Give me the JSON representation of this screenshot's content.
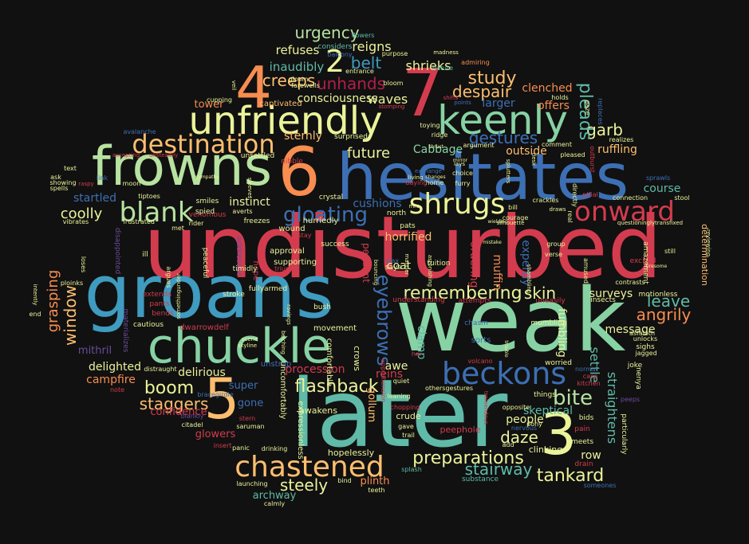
{
  "background": "#111111",
  "palette": {
    "red": "#d33c4e",
    "blue": "#3d6fb4",
    "teal": "#5fbaa7",
    "mint": "#87d2a3",
    "green": "#b7e2a0",
    "yellow": "#ebf39a",
    "orange": "#f78d50",
    "peach": "#fdbe6f",
    "crimson": "#b31e4a",
    "purple": "#6a4c9c",
    "cyan": "#3f9bbf"
  },
  "words": [
    {
      "text": "undisturbed",
      "color": "red"
    },
    {
      "text": "weak",
      "color": "mint"
    },
    {
      "text": "later",
      "color": "teal"
    },
    {
      "text": "groans",
      "color": "cyan"
    },
    {
      "text": "hesitates",
      "color": "blue"
    },
    {
      "text": "frowns",
      "color": "green"
    },
    {
      "text": "chuckle",
      "color": "mint"
    },
    {
      "text": "unfriendly",
      "color": "yellow"
    },
    {
      "text": "keenly",
      "color": "mint"
    },
    {
      "text": "7",
      "color": "red"
    },
    {
      "text": "6",
      "color": "orange"
    },
    {
      "text": "5",
      "color": "peach"
    },
    {
      "text": "4",
      "color": "orange"
    },
    {
      "text": "3",
      "color": "yellow"
    },
    {
      "text": "2",
      "color": "yellow"
    },
    {
      "text": "beckons",
      "color": "blue"
    },
    {
      "text": "destination",
      "color": "peach"
    },
    {
      "text": "chastened",
      "color": "peach"
    },
    {
      "text": "shrugs",
      "color": "yellow"
    },
    {
      "text": "onward",
      "color": "red"
    },
    {
      "text": "blank",
      "color": "green"
    },
    {
      "text": "gloating",
      "color": "blue"
    },
    {
      "text": "flashback",
      "color": "yellow"
    },
    {
      "text": "remembering",
      "color": "yellow"
    },
    {
      "text": "boom",
      "color": "yellow"
    },
    {
      "text": "bite",
      "color": "green"
    },
    {
      "text": "preparations",
      "color": "yellow"
    },
    {
      "text": "tankard",
      "color": "yellow"
    },
    {
      "text": "stairway",
      "color": "teal"
    },
    {
      "text": "staggers",
      "color": "peach"
    },
    {
      "text": "eyebrows",
      "color": "blue"
    },
    {
      "text": "study",
      "color": "peach"
    },
    {
      "text": "despair",
      "color": "peach"
    },
    {
      "text": "garb",
      "color": "yellow"
    },
    {
      "text": "gestures",
      "color": "blue"
    },
    {
      "text": "creeps",
      "color": "peach"
    },
    {
      "text": "urgency",
      "color": "green"
    },
    {
      "text": "unhands",
      "color": "crimson"
    },
    {
      "text": "belt",
      "color": "cyan"
    },
    {
      "text": "leave",
      "color": "teal"
    },
    {
      "text": "angrily",
      "color": "orange"
    },
    {
      "text": "daze",
      "color": "yellow"
    },
    {
      "text": "skin",
      "color": "yellow"
    },
    {
      "text": "steely",
      "color": "yellow"
    },
    {
      "text": "pleads",
      "color": "teal"
    },
    {
      "text": "future",
      "color": "yellow"
    },
    {
      "text": "coolly",
      "color": "yellow"
    },
    {
      "text": "window",
      "color": "peach"
    },
    {
      "text": "grasping",
      "color": "orange"
    },
    {
      "text": "shrieks",
      "color": "yellow"
    },
    {
      "text": "waves",
      "color": "yellow"
    },
    {
      "text": "reigns",
      "color": "yellow"
    },
    {
      "text": "refuses",
      "color": "yellow"
    },
    {
      "text": "inaudibly",
      "color": "teal"
    },
    {
      "text": "consciousness",
      "color": "yellow"
    },
    {
      "text": "tower",
      "color": "orange"
    },
    {
      "text": "larger",
      "color": "blue"
    },
    {
      "text": "offers",
      "color": "orange"
    },
    {
      "text": "clenched",
      "color": "orange"
    },
    {
      "text": "ruffling",
      "color": "peach"
    },
    {
      "text": "outside",
      "color": "peach"
    },
    {
      "text": "sternly",
      "color": "peach"
    },
    {
      "text": "Cabbage",
      "color": "mint"
    },
    {
      "text": "startled",
      "color": "blue"
    },
    {
      "text": "instinct",
      "color": "yellow"
    },
    {
      "text": "cushions",
      "color": "blue"
    },
    {
      "text": "horrified",
      "color": "peach"
    },
    {
      "text": "course",
      "color": "teal"
    },
    {
      "text": "surveys",
      "color": "yellow"
    },
    {
      "text": "message",
      "color": "yellow"
    },
    {
      "text": "delighted",
      "color": "yellow"
    },
    {
      "text": "delirious",
      "color": "yellow"
    },
    {
      "text": "campfire",
      "color": "orange"
    },
    {
      "text": "procession",
      "color": "red"
    },
    {
      "text": "awe",
      "color": "yellow"
    },
    {
      "text": "reins",
      "color": "red"
    },
    {
      "text": "clamp",
      "color": "teal"
    },
    {
      "text": "coat",
      "color": "yellow"
    },
    {
      "text": "muffin",
      "color": "orange"
    },
    {
      "text": "expertly",
      "color": "blue"
    },
    {
      "text": "fumbling",
      "color": "yellow"
    },
    {
      "text": "settle",
      "color": "teal"
    },
    {
      "text": "straightens",
      "color": "teal"
    },
    {
      "text": "row",
      "color": "yellow"
    },
    {
      "text": "people",
      "color": "yellow"
    },
    {
      "text": "skeptical",
      "color": "teal"
    },
    {
      "text": "confidence",
      "color": "red"
    },
    {
      "text": "glowers",
      "color": "red"
    },
    {
      "text": "gone",
      "color": "blue"
    },
    {
      "text": "super",
      "color": "blue"
    },
    {
      "text": "mithril",
      "color": "purple"
    },
    {
      "text": "archway",
      "color": "teal"
    },
    {
      "text": "plinth",
      "color": "orange"
    },
    {
      "text": "gollum",
      "color": "peach"
    },
    {
      "text": "ordering",
      "color": "red"
    },
    {
      "text": "pendant",
      "color": "red"
    },
    {
      "text": "crude",
      "color": "yellow"
    },
    {
      "text": "peephole",
      "color": "red"
    },
    {
      "text": "clinking",
      "color": "yellow"
    },
    {
      "text": "hopelessly",
      "color": "yellow"
    },
    {
      "text": "awakens",
      "color": "yellow"
    },
    {
      "text": "crows",
      "color": "yellow"
    },
    {
      "text": "unstrap",
      "color": "blue"
    },
    {
      "text": "dwarrowdelf",
      "color": "red"
    },
    {
      "text": "movement",
      "color": "yellow"
    },
    {
      "text": "comfortable",
      "color": "yellow"
    },
    {
      "text": "uncomfortably",
      "color": "yellow"
    },
    {
      "text": "expressionless",
      "color": "yellow"
    },
    {
      "text": "supporting",
      "color": "yellow"
    },
    {
      "text": "approval",
      "color": "yellow"
    },
    {
      "text": "addresses",
      "color": "purple"
    },
    {
      "text": "hope",
      "color": "red"
    },
    {
      "text": "wound",
      "color": "yellow"
    },
    {
      "text": "hurriedly",
      "color": "yellow"
    },
    {
      "text": "fullyarmed",
      "color": "yellow"
    },
    {
      "text": "captivated",
      "color": "peach"
    },
    {
      "text": "venomous",
      "color": "red"
    },
    {
      "text": "spied",
      "color": "yellow"
    },
    {
      "text": "freezes",
      "color": "yellow"
    },
    {
      "text": "peaceful",
      "color": "yellow"
    },
    {
      "text": "disappointed",
      "color": "purple"
    },
    {
      "text": "materializes",
      "color": "purple"
    },
    {
      "text": "ill",
      "color": "yellow"
    },
    {
      "text": "pants",
      "color": "red"
    },
    {
      "text": "bends",
      "color": "red"
    },
    {
      "text": "cautious",
      "color": "yellow"
    },
    {
      "text": "extends",
      "color": "red"
    },
    {
      "text": "stroke",
      "color": "yellow"
    },
    {
      "text": "timidly",
      "color": "yellow"
    },
    {
      "text": "bush",
      "color": "yellow"
    },
    {
      "text": "success",
      "color": "yellow"
    },
    {
      "text": "surprised",
      "color": "yellow"
    },
    {
      "text": "unsettled",
      "color": "yellow"
    },
    {
      "text": "nibble",
      "color": "red"
    },
    {
      "text": "crystal",
      "color": "yellow"
    },
    {
      "text": "north",
      "color": "yellow"
    },
    {
      "text": "pats",
      "color": "yellow"
    },
    {
      "text": "says",
      "color": "yellow"
    },
    {
      "text": "tuition",
      "color": "yellow"
    },
    {
      "text": "attempts",
      "color": "red"
    },
    {
      "text": "understanding",
      "color": "red"
    },
    {
      "text": "uneasily",
      "color": "red"
    },
    {
      "text": "amazement",
      "color": "yellow"
    },
    {
      "text": "determination",
      "color": "peach"
    },
    {
      "text": "insects",
      "color": "yellow"
    },
    {
      "text": "motionless",
      "color": "yellow"
    },
    {
      "text": "sighs",
      "color": "yellow"
    },
    {
      "text": "joke",
      "color": "yellow"
    },
    {
      "text": "nenya",
      "color": "yellow"
    },
    {
      "text": "particularly",
      "color": "yellow"
    },
    {
      "text": "mumbling",
      "color": "yellow"
    },
    {
      "text": "worried",
      "color": "yellow"
    },
    {
      "text": "things",
      "color": "yellow"
    },
    {
      "text": "bids",
      "color": "yellow"
    },
    {
      "text": "pain",
      "color": "red"
    },
    {
      "text": "drain",
      "color": "red"
    },
    {
      "text": "meets",
      "color": "yellow"
    },
    {
      "text": "substance",
      "color": "teal"
    },
    {
      "text": "someones",
      "color": "blue"
    },
    {
      "text": "splash",
      "color": "teal"
    },
    {
      "text": "teeth",
      "color": "yellow"
    },
    {
      "text": "calmly",
      "color": "yellow"
    },
    {
      "text": "launching",
      "color": "yellow"
    },
    {
      "text": "bind",
      "color": "yellow"
    },
    {
      "text": "drinking",
      "color": "yellow"
    },
    {
      "text": "panic",
      "color": "yellow"
    },
    {
      "text": "insert",
      "color": "red"
    },
    {
      "text": "stern",
      "color": "red"
    },
    {
      "text": "saruman",
      "color": "yellow"
    },
    {
      "text": "citadel",
      "color": "yellow"
    },
    {
      "text": "blankly",
      "color": "purple"
    },
    {
      "text": "bracegirdle",
      "color": "blue"
    },
    {
      "text": "distraught",
      "color": "yellow"
    },
    {
      "text": "note",
      "color": "red"
    },
    {
      "text": "smiles",
      "color": "yellow"
    },
    {
      "text": "rider",
      "color": "yellow"
    },
    {
      "text": "averts",
      "color": "yellow"
    },
    {
      "text": "cupping",
      "color": "yellow"
    },
    {
      "text": "gloom",
      "color": "yellow"
    },
    {
      "text": "farewells",
      "color": "yellow"
    },
    {
      "text": "entrance",
      "color": "yellow"
    },
    {
      "text": "considers",
      "color": "teal"
    },
    {
      "text": "balcony",
      "color": "blue"
    },
    {
      "text": "purpose",
      "color": "yellow"
    },
    {
      "text": "flowers",
      "color": "teal"
    },
    {
      "text": "nature",
      "color": "teal"
    },
    {
      "text": "admiring",
      "color": "orange"
    },
    {
      "text": "holds",
      "color": "yellow"
    },
    {
      "text": "gaze",
      "color": "yellow"
    },
    {
      "text": "replaces",
      "color": "blue"
    },
    {
      "text": "toying",
      "color": "yellow"
    },
    {
      "text": "ridge",
      "color": "yellow"
    },
    {
      "text": "argument",
      "color": "yellow"
    },
    {
      "text": "comment",
      "color": "yellow"
    },
    {
      "text": "realizes",
      "color": "yellow"
    },
    {
      "text": "pleased",
      "color": "yellow"
    },
    {
      "text": "outburst",
      "color": "red"
    },
    {
      "text": "sprawls",
      "color": "blue"
    },
    {
      "text": "stool",
      "color": "yellow"
    },
    {
      "text": "connection",
      "color": "yellow"
    },
    {
      "text": "questioninglytransfixed",
      "color": "yellow"
    },
    {
      "text": "crackles",
      "color": "yellow"
    },
    {
      "text": "courage",
      "color": "yellow"
    },
    {
      "text": "bill",
      "color": "yellow"
    },
    {
      "text": "home",
      "color": "yellow"
    },
    {
      "text": "baying",
      "color": "red"
    },
    {
      "text": "choice",
      "color": "yellow"
    },
    {
      "text": "furry",
      "color": "yellow"
    },
    {
      "text": "avalanche",
      "color": "blue"
    },
    {
      "text": "unsteadily",
      "color": "red"
    },
    {
      "text": "accepting",
      "color": "red"
    },
    {
      "text": "link",
      "color": "blue"
    },
    {
      "text": "moon",
      "color": "yellow"
    },
    {
      "text": "tiptoes",
      "color": "yellow"
    },
    {
      "text": "ask",
      "color": "yellow"
    },
    {
      "text": "showing",
      "color": "yellow"
    },
    {
      "text": "spells",
      "color": "yellow"
    },
    {
      "text": "text",
      "color": "yellow"
    },
    {
      "text": "frustrated",
      "color": "yellow"
    },
    {
      "text": "met",
      "color": "yellow"
    },
    {
      "text": "vibrates",
      "color": "yellow"
    },
    {
      "text": "argues",
      "color": "yellow"
    },
    {
      "text": "loses",
      "color": "yellow"
    },
    {
      "text": "ploinks",
      "color": "yellow"
    },
    {
      "text": "intently",
      "color": "yellow"
    },
    {
      "text": "end",
      "color": "yellow"
    },
    {
      "text": "somethingunder",
      "color": "yellow"
    },
    {
      "text": "sleeves",
      "color": "yellow"
    },
    {
      "text": "stay",
      "color": "red"
    },
    {
      "text": "triumph",
      "color": "red"
    },
    {
      "text": "wax",
      "color": "blue"
    },
    {
      "text": "manner",
      "color": "yellow"
    },
    {
      "text": "bouncing",
      "color": "yellow"
    },
    {
      "text": "astonishing",
      "color": "yellow"
    },
    {
      "text": "tremendous",
      "color": "red"
    },
    {
      "text": "shambling",
      "color": "yellow"
    },
    {
      "text": "nervous",
      "color": "blue"
    },
    {
      "text": "volcano",
      "color": "red"
    },
    {
      "text": "sorts",
      "color": "blue"
    },
    {
      "text": "chasm",
      "color": "blue"
    },
    {
      "text": "apprehension",
      "color": "red"
    },
    {
      "text": "leaning",
      "color": "yellow"
    },
    {
      "text": "quiet",
      "color": "yellow"
    },
    {
      "text": "gave",
      "color": "yellow"
    },
    {
      "text": "trail",
      "color": "yellow"
    },
    {
      "text": "chopping",
      "color": "red"
    },
    {
      "text": "opposite",
      "color": "yellow"
    },
    {
      "text": "add",
      "color": "yellow"
    },
    {
      "text": "pony",
      "color": "yellow"
    },
    {
      "text": "kitchen",
      "color": "red"
    },
    {
      "text": "case",
      "color": "red"
    },
    {
      "text": "normal",
      "color": "blue"
    },
    {
      "text": "unlocks",
      "color": "yellow"
    },
    {
      "text": "asfaloth",
      "color": "yellow"
    },
    {
      "text": "jagged",
      "color": "yellow"
    },
    {
      "text": "peeps",
      "color": "purple"
    },
    {
      "text": "excited",
      "color": "red"
    },
    {
      "text": "contrasts",
      "color": "yellow"
    },
    {
      "text": "reviewing",
      "color": "yellow"
    },
    {
      "text": "still",
      "color": "yellow"
    },
    {
      "text": "amused",
      "color": "yellow"
    },
    {
      "text": "group",
      "color": "yellow"
    },
    {
      "text": "verse",
      "color": "yellow"
    },
    {
      "text": "real",
      "color": "yellow"
    },
    {
      "text": "directly",
      "color": "yellow"
    },
    {
      "text": "phial",
      "color": "red"
    },
    {
      "text": "draws",
      "color": "yellow"
    },
    {
      "text": "splutters",
      "color": "yellow"
    },
    {
      "text": "desk",
      "color": "yellow"
    },
    {
      "text": "silhouette",
      "color": "yellow"
    },
    {
      "text": "madness",
      "color": "yellow"
    },
    {
      "text": "shifts",
      "color": "red"
    },
    {
      "text": "points",
      "color": "blue"
    },
    {
      "text": "stomping",
      "color": "red"
    },
    {
      "text": "bloom",
      "color": "yellow"
    },
    {
      "text": "veil",
      "color": "yellow"
    },
    {
      "text": "mrs",
      "color": "yellow"
    },
    {
      "text": "exchange",
      "color": "blue"
    },
    {
      "text": "lays",
      "color": "yellow"
    },
    {
      "text": "living",
      "color": "yellow"
    },
    {
      "text": "othersgestures",
      "color": "yellow"
    },
    {
      "text": "hai",
      "color": "red"
    },
    {
      "text": "skyline",
      "color": "yellow"
    },
    {
      "text": "scene",
      "color": "yellow"
    },
    {
      "text": "belching",
      "color": "yellow"
    },
    {
      "text": "ravings",
      "color": "yellow"
    },
    {
      "text": "raspy",
      "color": "red"
    },
    {
      "text": "sympathy",
      "color": "yellow"
    },
    {
      "text": "mirror",
      "color": "yellow"
    },
    {
      "text": "wielding",
      "color": "yellow"
    },
    {
      "text": "mistake",
      "color": "yellow"
    },
    {
      "text": "trouble",
      "color": "yellow"
    },
    {
      "text": "tiresome",
      "color": "yellow"
    },
    {
      "text": "changes",
      "color": "yellow"
    },
    {
      "text": "thrust",
      "color": "yellow"
    }
  ]
}
